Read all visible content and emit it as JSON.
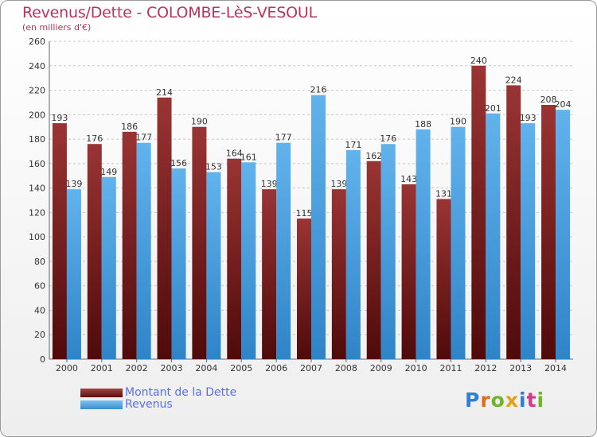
{
  "title": "Revenus/Dette - COLOMBE-LèS-VESOUL",
  "subtitle": "(en milliers d'€)",
  "colors": {
    "dette": "#7a1515",
    "revenus": "#4fa3e0",
    "title": "#b5355d",
    "legend_text": "#5b6fe0"
  },
  "legend": [
    {
      "label": "Montant de la Dette",
      "color": "#7a1515"
    },
    {
      "label": "Revenus",
      "color": "#4fa3e0"
    }
  ],
  "logo": {
    "text": "Proxiti"
  },
  "chart_data": {
    "type": "bar",
    "categories": [
      "2000",
      "2001",
      "2002",
      "2003",
      "2004",
      "2005",
      "2006",
      "2007",
      "2008",
      "2009",
      "2010",
      "2011",
      "2012",
      "2013",
      "2014"
    ],
    "series": [
      {
        "name": "Montant de la Dette",
        "values": [
          193,
          176,
          186,
          214,
          190,
          164,
          139,
          115,
          139,
          162,
          143,
          131,
          240,
          224,
          208
        ]
      },
      {
        "name": "Revenus",
        "values": [
          139,
          149,
          177,
          156,
          153,
          161,
          177,
          216,
          171,
          176,
          188,
          190,
          201,
          193,
          204
        ]
      }
    ],
    "title": "Revenus/Dette - COLOMBE-LèS-VESOUL",
    "ylabel": "(en milliers d'€)",
    "ylim": [
      0,
      260
    ],
    "yticks": [
      0,
      20,
      40,
      60,
      80,
      100,
      120,
      140,
      160,
      180,
      200,
      220,
      240,
      260
    ],
    "grid": true,
    "legend_position": "bottom-left"
  }
}
